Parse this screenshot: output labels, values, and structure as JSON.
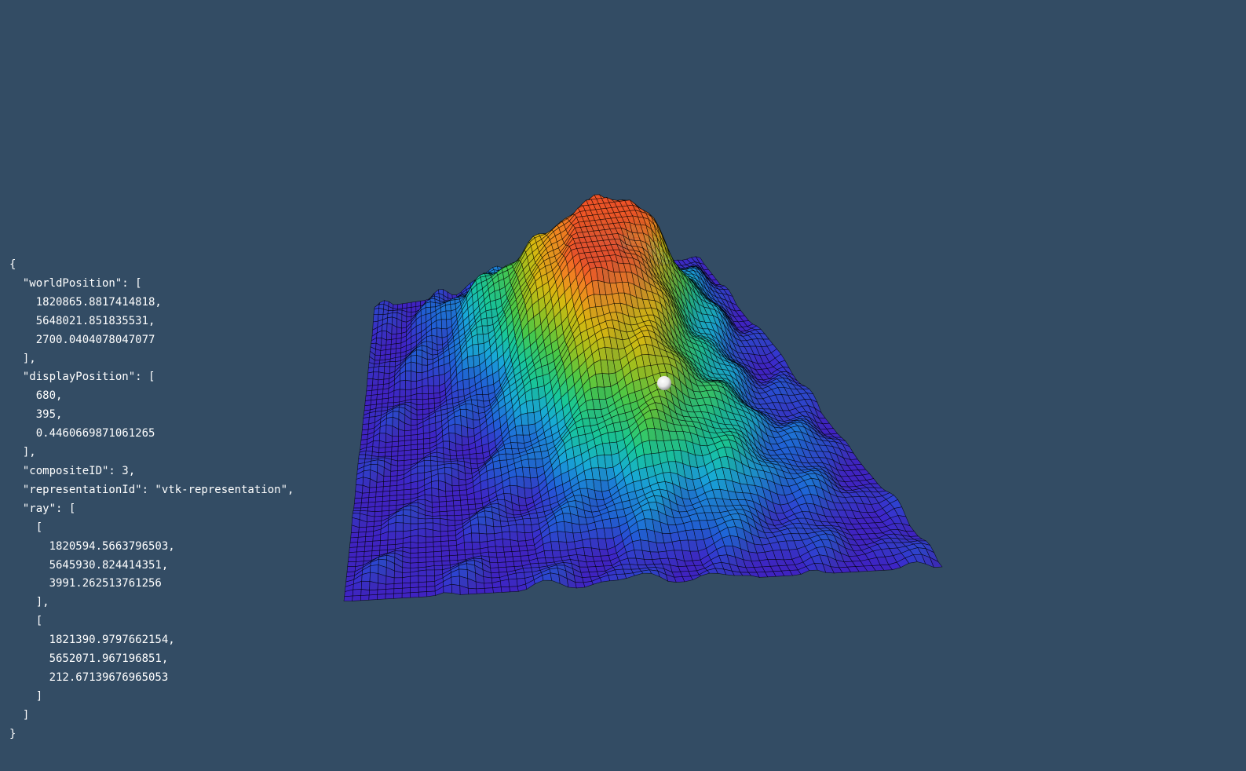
{
  "scene": {
    "background_color": "#334c64",
    "mesh_edge_color": "#000000",
    "colormap": [
      "#4020c8",
      "#2060d8",
      "#18a8d8",
      "#18c898",
      "#48c848",
      "#98c020",
      "#d8b810",
      "#f08820",
      "#f05028"
    ],
    "picked_point_color": "#ffffff"
  },
  "pick_info": {
    "lines": [
      "{",
      "  \"worldPosition\": [",
      "    1820865.8817414818,",
      "    5648021.851835531,",
      "    2700.0404078047077",
      "  ],",
      "  \"displayPosition\": [",
      "    680,",
      "    395,",
      "    0.4460669871061265",
      "  ],",
      "  \"compositeID\": 3,",
      "  \"representationId\": \"vtk-representation\",",
      "  \"ray\": [",
      "    [",
      "      1820594.5663796503,",
      "      5645930.824414351,",
      "      3991.262513761256",
      "    ],",
      "    [",
      "      1821390.9797662154,",
      "      5652071.967196851,",
      "      212.67139676965053",
      "    ]",
      "  ]",
      "}"
    ]
  }
}
